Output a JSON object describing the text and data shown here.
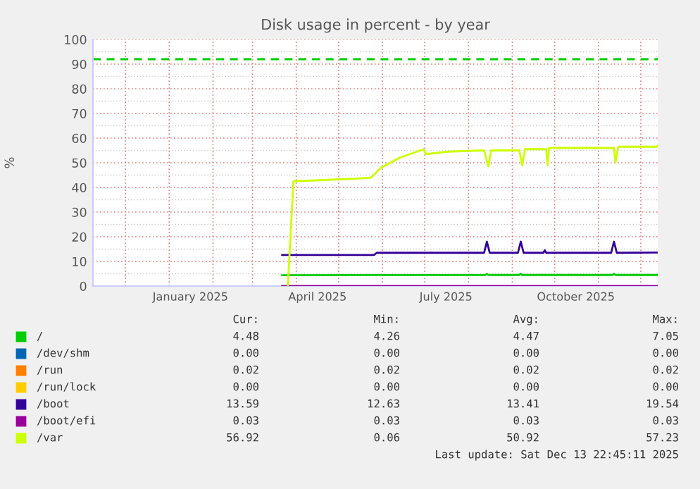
{
  "chart_data": {
    "type": "line",
    "title": "Disk usage in percent - by year",
    "ylabel": "%",
    "xlim": [
      "2024-11-08",
      "2025-12-13"
    ],
    "xticks": [
      {
        "value": "2024-12-01",
        "label": null
      },
      {
        "value": "2025-01-01",
        "label": null
      },
      {
        "value": "2025-01-16",
        "label": "January 2025"
      },
      {
        "value": "2025-02-01",
        "label": null
      },
      {
        "value": "2025-03-01",
        "label": null
      },
      {
        "value": "2025-04-01",
        "label": null
      },
      {
        "value": "2025-04-16",
        "label": "April 2025"
      },
      {
        "value": "2025-05-01",
        "label": null
      },
      {
        "value": "2025-06-01",
        "label": null
      },
      {
        "value": "2025-07-01",
        "label": null
      },
      {
        "value": "2025-07-16",
        "label": "July 2025"
      },
      {
        "value": "2025-08-01",
        "label": null
      },
      {
        "value": "2025-09-01",
        "label": null
      },
      {
        "value": "2025-10-01",
        "label": null
      },
      {
        "value": "2025-10-16",
        "label": "October 2025"
      },
      {
        "value": "2025-11-01",
        "label": null
      },
      {
        "value": "2025-12-01",
        "label": null
      }
    ],
    "ylim": [
      0,
      100
    ],
    "yticks": [
      0,
      10,
      20,
      30,
      40,
      50,
      60,
      70,
      80,
      90,
      100
    ],
    "grid": true,
    "legend": "bottom",
    "ref_lines": [
      {
        "axis": "y",
        "value": 92,
        "color": "#00cc00",
        "line_style": "dashed"
      }
    ],
    "series": [
      {
        "name": "/",
        "color": "#00cc00",
        "x": [
          "2025-03-22",
          "2025-08-13",
          "2025-08-14",
          "2025-08-15",
          "2025-09-06",
          "2025-09-07",
          "2025-09-08",
          "2025-11-11",
          "2025-11-12",
          "2025-11-13",
          "2025-12-13"
        ],
        "values": [
          4.4,
          4.5,
          5.0,
          4.5,
          4.5,
          5.0,
          4.5,
          4.5,
          5.0,
          4.5,
          4.5
        ]
      },
      {
        "name": "/dev/shm",
        "color": "#0066b3"
      },
      {
        "name": "/run",
        "color": "#ff8000"
      },
      {
        "name": "/run/lock",
        "color": "#ffcc00"
      },
      {
        "name": "/boot",
        "color": "#330099",
        "x": [
          "2025-03-22",
          "2025-05-26",
          "2025-05-28",
          "2025-08-12",
          "2025-08-14",
          "2025-08-16",
          "2025-09-05",
          "2025-09-07",
          "2025-09-09",
          "2025-09-23",
          "2025-09-24",
          "2025-09-25",
          "2025-11-10",
          "2025-11-12",
          "2025-11-14",
          "2025-12-13"
        ],
        "values": [
          12.6,
          12.6,
          13.5,
          13.5,
          18,
          13.5,
          13.5,
          18,
          13.5,
          13.5,
          14.5,
          13.5,
          13.5,
          18,
          13.5,
          13.6
        ]
      },
      {
        "name": "/boot/efi",
        "color": "#990099",
        "x": [
          "2025-03-22",
          "2025-12-13"
        ],
        "values": [
          0,
          0
        ]
      },
      {
        "name": "/var",
        "color": "#ccff00",
        "x": [
          "2025-03-26",
          "2025-03-30",
          "2025-04-21",
          "2025-05-11",
          "2025-05-24",
          "2025-05-31",
          "2025-06-13",
          "2025-06-23",
          "2025-06-30",
          "2025-07-02",
          "2025-07-17",
          "2025-08-12",
          "2025-08-15",
          "2025-08-17",
          "2025-09-06",
          "2025-09-08",
          "2025-09-10",
          "2025-09-25",
          "2025-09-26",
          "2025-09-27",
          "2025-11-12",
          "2025-11-13",
          "2025-11-15",
          "2025-12-12",
          "2025-12-13"
        ],
        "values": [
          0,
          42.5,
          43,
          43.5,
          44,
          48,
          52,
          54,
          55.5,
          53.5,
          54.5,
          55,
          48.5,
          55,
          55,
          49,
          55.5,
          55.5,
          49,
          56,
          56,
          50,
          56.5,
          56.5,
          56.9
        ]
      }
    ],
    "annotations": [
      "Cur:",
      "Min:",
      "Avg:",
      "Max:",
      "4.48",
      "4.26",
      "4.47",
      "7.05",
      "0.00",
      "0.00",
      "0.00",
      "0.00",
      "0.02",
      "0.02",
      "0.02",
      "0.02",
      "0.00",
      "0.00",
      "0.00",
      "0.00",
      "13.59",
      "12.63",
      "13.41",
      "19.54",
      "0.03",
      "0.03",
      "0.03",
      "0.03",
      "56.92",
      "0.06",
      "50.92",
      "57.23",
      "Last update: Sat Dec 13 22:45:11 2025"
    ]
  }
}
